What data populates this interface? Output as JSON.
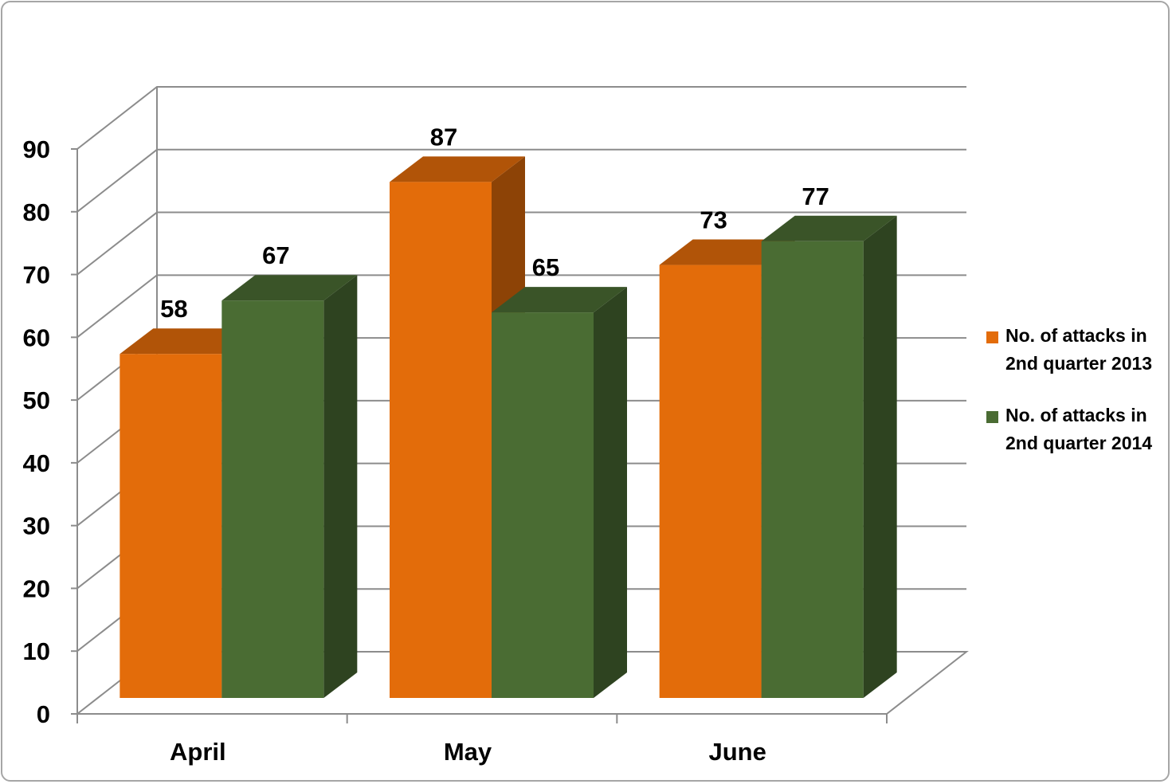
{
  "chart_data": {
    "type": "bar",
    "categories": [
      "April",
      "May",
      "June"
    ],
    "series": [
      {
        "name": "No. of attacks in 2nd quarter 2013",
        "values": [
          58,
          87,
          73
        ],
        "color": "#e36c0a"
      },
      {
        "name": "No. of attacks in 2nd quarter 2014",
        "values": [
          67,
          65,
          77
        ],
        "color": "#4a6c33"
      }
    ],
    "ylim": [
      0,
      90
    ],
    "yticks": [
      "0",
      "10",
      "20",
      "30",
      "40",
      "50",
      "60",
      "70",
      "80",
      "90"
    ],
    "grid": true,
    "legend_position": "right",
    "data_labels": true,
    "three_d": true
  }
}
